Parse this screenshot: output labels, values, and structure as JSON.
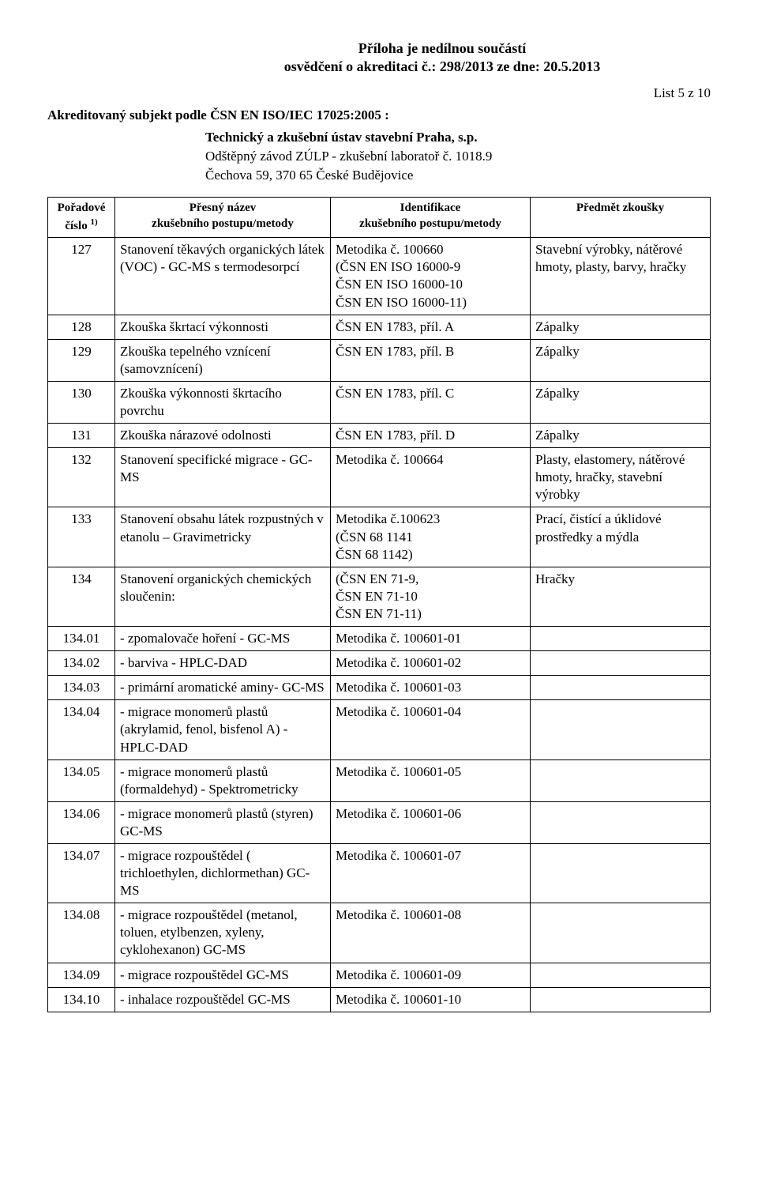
{
  "header": {
    "line1": "Příloha je nedílnou součástí",
    "line2": "osvědčení o akreditaci č.: 298/2013 ze dne: 20.5.2013"
  },
  "list_label": "List 5 z 10",
  "subject": {
    "line1": "Akreditovaný subjekt podle ČSN EN ISO/IEC 17025:2005 :",
    "line2": "Technický a zkušební ústav stavební Praha, s.p.",
    "line3": "Odštěpný závod ZÚLP - zkušební laboratoř č. 1018.9",
    "line4": "Čechova 59, 370 65 České Budějovice"
  },
  "table": {
    "columns": {
      "num_l1": "Pořadové",
      "num_l2": "číslo ",
      "num_sup": "1)",
      "name_l1": "Přesný název",
      "name_l2": "zkušebního postupu/metody",
      "ident_l1": "Identifikace",
      "ident_l2": "zkušebního postupu/metody",
      "subj": "Předmět zkoušky"
    },
    "rows": [
      {
        "num": "127",
        "name": "Stanovení těkavých organických látek (VOC) - GC-MS s termodesorpcí",
        "ident": "Metodika č. 100660\n(ČSN EN ISO 16000-9\nČSN EN ISO 16000-10\nČSN EN ISO 16000-11)",
        "subj": "Stavební výrobky, nátěrové hmoty, plasty, barvy, hračky"
      },
      {
        "num": "128",
        "name": "Zkouška škrtací výkonnosti",
        "ident": "ČSN EN 1783, příl. A",
        "subj": "Zápalky"
      },
      {
        "num": "129",
        "name": "Zkouška tepelného vznícení (samovznícení)",
        "ident": "ČSN EN 1783, příl. B",
        "subj": "Zápalky"
      },
      {
        "num": "130",
        "name": "Zkouška výkonnosti škrtacího povrchu",
        "ident": "ČSN EN 1783, příl. C",
        "subj": "Zápalky"
      },
      {
        "num": "131",
        "name": "Zkouška nárazové odolnosti",
        "ident": "ČSN EN 1783, příl. D",
        "subj": "Zápalky"
      },
      {
        "num": "132",
        "name": "Stanovení specifické migrace - GC-MS",
        "ident": "Metodika č. 100664",
        "subj": "Plasty, elastomery, nátěrové hmoty, hračky, stavební výrobky"
      },
      {
        "num": "133",
        "name": "Stanovení obsahu látek rozpustných v etanolu – Gravimetricky",
        "ident": "Metodika č.100623\n(ČSN 68 1141\nČSN 68 1142)",
        "subj": "Prací, čistící a úklidové prostředky a mýdla"
      },
      {
        "num": "134",
        "name": "Stanovení organických chemických sloučenin:",
        "ident": "(ČSN EN 71-9,\nČSN EN 71-10\nČSN EN 71-11)",
        "subj": "Hračky"
      },
      {
        "num": "134.01",
        "name": "- zpomalovače hoření - GC-MS",
        "ident": "Metodika č. 100601-01",
        "subj": ""
      },
      {
        "num": "134.02",
        "name": "- barviva - HPLC-DAD",
        "ident": "Metodika č. 100601-02",
        "subj": ""
      },
      {
        "num": "134.03",
        "name": "- primární aromatické aminy- GC-MS",
        "ident": "Metodika č. 100601-03",
        "subj": ""
      },
      {
        "num": "134.04",
        "name": "- migrace monomerů plastů (akrylamid, fenol, bisfenol A) - HPLC-DAD",
        "ident": "Metodika č. 100601-04",
        "subj": ""
      },
      {
        "num": "134.05",
        "name": "- migrace monomerů plastů (formaldehyd) - Spektrometricky",
        "ident": "Metodika č. 100601-05",
        "subj": ""
      },
      {
        "num": "134.06",
        "name": "- migrace monomerů plastů (styren) GC-MS",
        "ident": "Metodika č. 100601-06",
        "subj": ""
      },
      {
        "num": "134.07",
        "name": "- migrace rozpouštědel ( trichloethylen, dichlormethan) GC-MS",
        "ident": "Metodika č. 100601-07",
        "subj": ""
      },
      {
        "num": "134.08",
        "name": "- migrace rozpouštědel (metanol, toluen, etylbenzen, xyleny, cyklohexanon) GC-MS",
        "ident": "Metodika č. 100601-08",
        "subj": ""
      },
      {
        "num": "134.09",
        "name": "- migrace rozpouštědel GC-MS",
        "ident": "Metodika č. 100601-09",
        "subj": ""
      },
      {
        "num": "134.10",
        "name": "- inhalace rozpouštědel GC-MS",
        "ident": "Metodika č. 100601-10",
        "subj": ""
      }
    ]
  }
}
